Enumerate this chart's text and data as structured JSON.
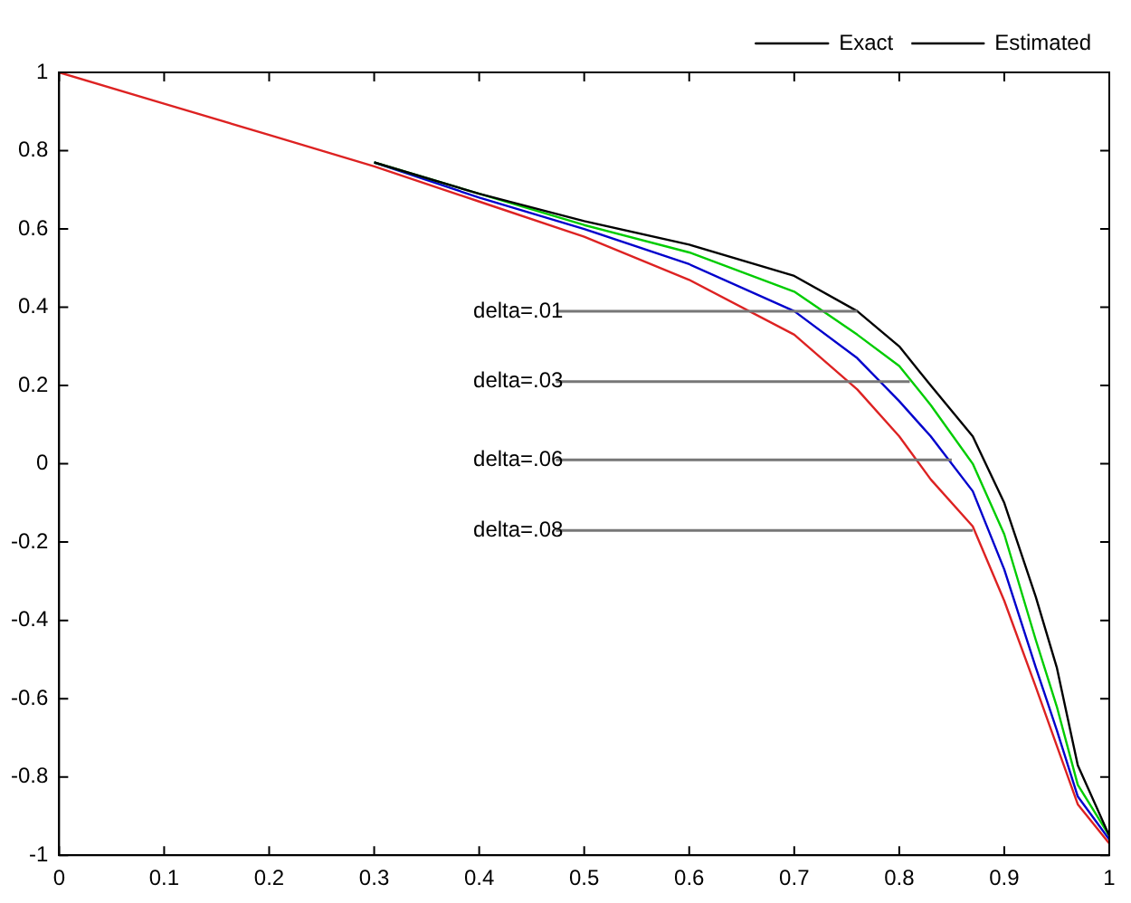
{
  "chart_data": {
    "type": "line",
    "x": [
      0,
      0.1,
      0.2,
      0.3,
      0.4,
      0.5,
      0.6,
      0.7,
      0.76,
      0.8,
      0.83,
      0.87,
      0.9,
      0.93,
      0.95,
      0.97,
      1
    ],
    "series": [
      {
        "name": "Exact",
        "color": "#000000",
        "line_style": "solid",
        "values": [
          null,
          null,
          null,
          0.77,
          0.69,
          0.62,
          0.56,
          0.48,
          0.39,
          0.3,
          0.2,
          0.07,
          -0.1,
          -0.34,
          -0.52,
          -0.77,
          -0.95
        ]
      },
      {
        "name": "Estimated",
        "color": "#000000",
        "line_style": "dashed",
        "values": [
          null,
          null,
          null,
          null,
          null,
          null,
          null,
          null,
          null,
          null,
          null,
          null,
          null,
          null,
          null,
          null,
          null
        ]
      },
      {
        "color": "#00cc00",
        "values": [
          null,
          null,
          null,
          0.77,
          0.69,
          0.61,
          0.54,
          0.44,
          0.33,
          0.25,
          0.15,
          0.0,
          -0.18,
          -0.45,
          -0.62,
          -0.82,
          -0.95
        ]
      },
      {
        "color": "#0000cc",
        "values": [
          null,
          null,
          null,
          0.77,
          0.68,
          0.6,
          0.51,
          0.39,
          0.27,
          0.16,
          0.07,
          -0.07,
          -0.27,
          -0.52,
          -0.68,
          -0.85,
          -0.96
        ]
      },
      {
        "color": "#dd2222",
        "values": [
          1,
          0.92,
          0.84,
          0.76,
          0.67,
          0.58,
          0.47,
          0.33,
          0.19,
          0.07,
          -0.04,
          -0.16,
          -0.35,
          -0.57,
          -0.72,
          -0.87,
          -0.97
        ]
      }
    ],
    "xlim": [
      0,
      1
    ],
    "xticks": [
      0,
      0.1,
      0.2,
      0.3,
      0.4,
      0.5,
      0.6,
      0.7,
      0.8,
      0.9,
      1
    ],
    "ylim": [
      -1,
      1
    ],
    "yticks": [
      -1,
      -0.8,
      -0.6,
      -0.4,
      -0.2,
      0,
      0.2,
      0.4,
      0.6,
      0.8,
      1
    ],
    "legend": "top right",
    "marker": "none",
    "annotations": [
      {
        "text": "delta=.01",
        "x": 0.76,
        "y": 0.39
      },
      {
        "text": "delta=.03",
        "x": 0.81,
        "y": 0.21
      },
      {
        "text": "delta=.06",
        "x": 0.85,
        "y": 0.01
      },
      {
        "text": "delta=.08",
        "x": 0.87,
        "y": -0.17
      }
    ]
  }
}
